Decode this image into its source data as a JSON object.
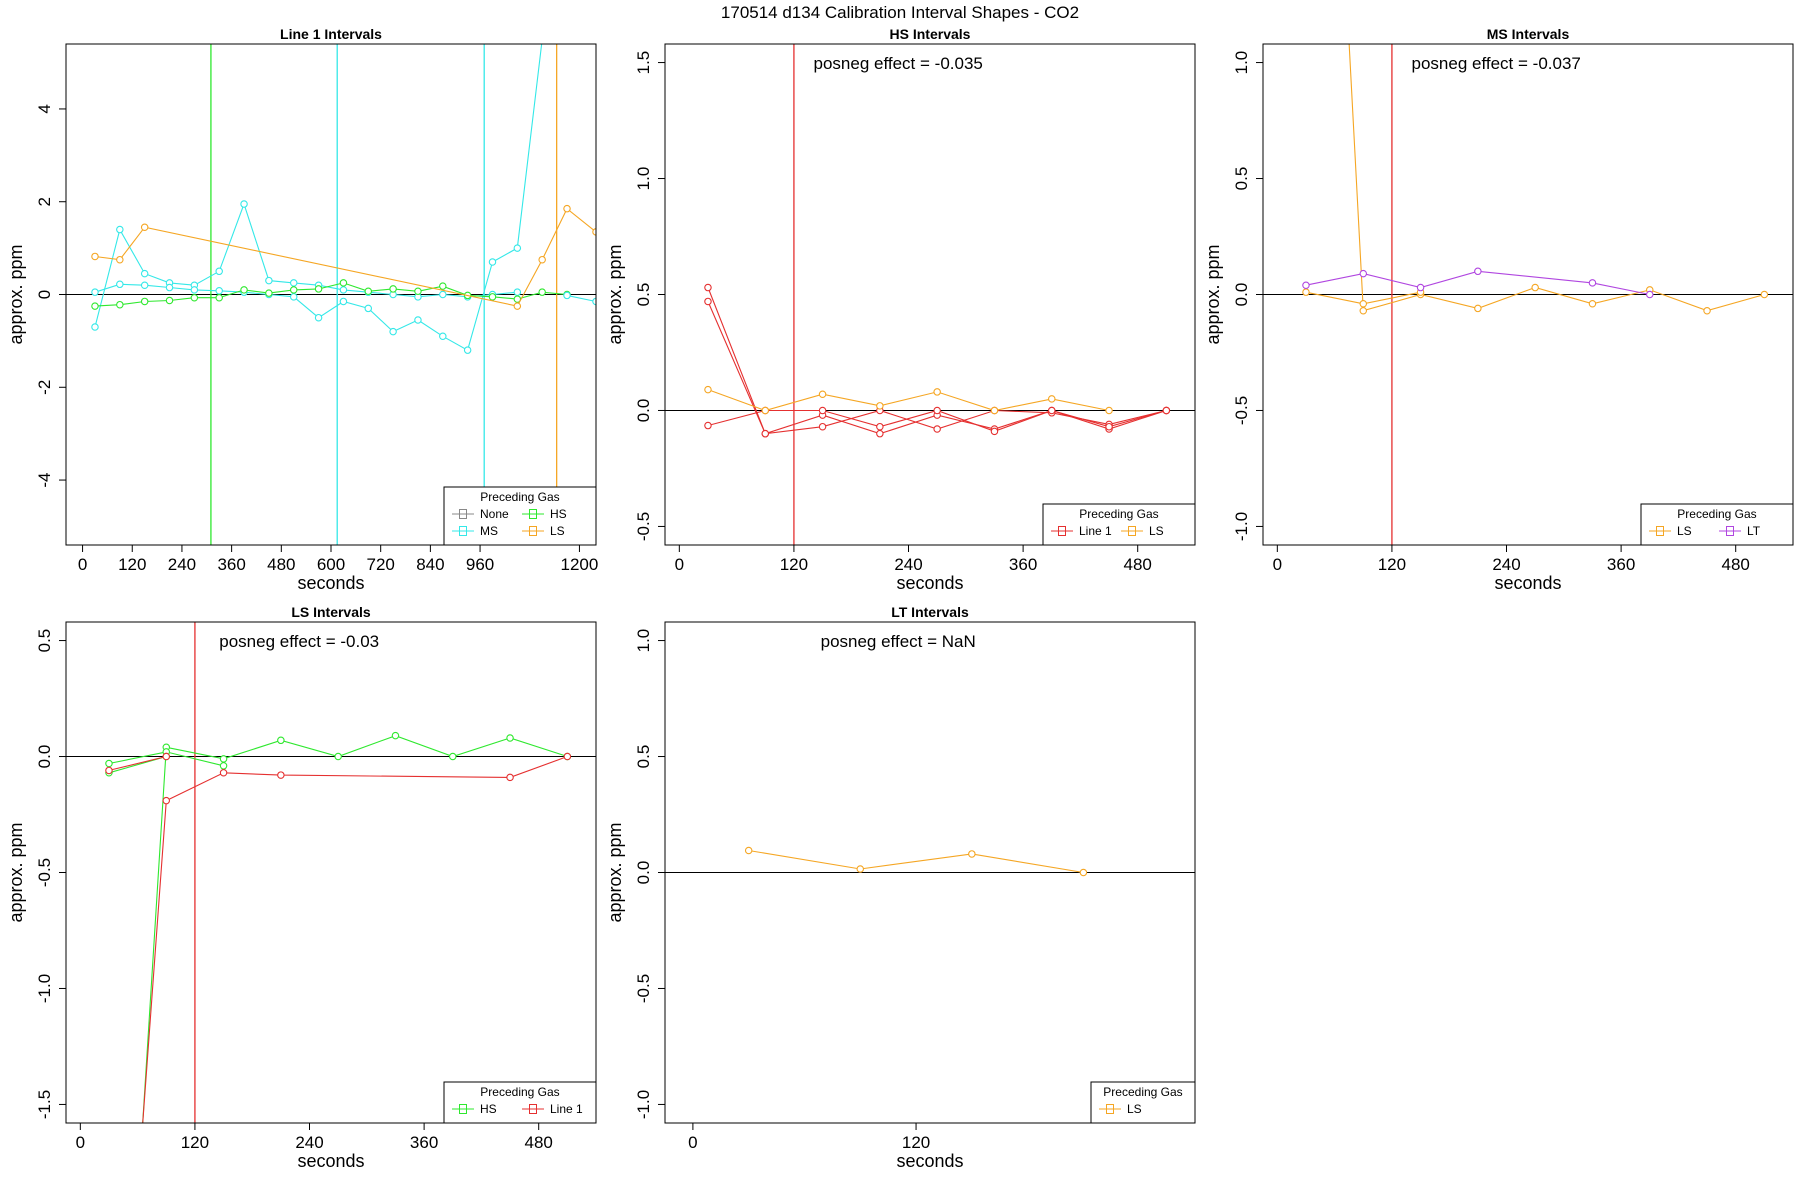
{
  "figure_title": "170514  d134   Calibration Interval Shapes - CO2",
  "colors": {
    "None": "#888888",
    "HS": "#2ee82e",
    "MS": "#34e8e8",
    "LS": "#f5a623",
    "Line 1": "#e53030",
    "LT": "#b046e0",
    "zero_line": "#000000"
  },
  "chart_data": [
    {
      "type": "line",
      "title": "Line 1 Intervals",
      "xlabel": "seconds",
      "ylabel": "approx. ppm",
      "xlim": [
        -40,
        1240
      ],
      "ylim": [
        -5.4,
        5.4
      ],
      "xticks": [
        0,
        120,
        240,
        360,
        480,
        600,
        720,
        840,
        960,
        1200
      ],
      "yticks": [
        -4,
        -2,
        0,
        2,
        4
      ],
      "annotation": "",
      "vlines": [
        {
          "x": 310,
          "color_key": "HS"
        },
        {
          "x": 615,
          "color_key": "MS"
        },
        {
          "x": 970,
          "color_key": "MS"
        },
        {
          "x": 1145,
          "color_key": "LS"
        }
      ],
      "legend": {
        "title": "Preceding Gas",
        "entries": [
          "None",
          "HS",
          "MS",
          "LS"
        ],
        "position": "bottomright",
        "columns": 2
      },
      "series": [
        {
          "name": "MS",
          "color_key": "MS",
          "x": [
            30,
            90,
            150,
            210,
            270,
            330,
            390,
            450,
            510,
            570,
            630,
            690,
            750,
            810,
            870,
            930,
            990,
            1050
          ],
          "y": [
            -0.7,
            1.4,
            0.45,
            0.25,
            0.2,
            0.5,
            1.95,
            0.3,
            0.25,
            0.2,
            0.1,
            0.05,
            0.0,
            -0.05,
            0.0,
            -0.05,
            0.0,
            0.05
          ]
        },
        {
          "name": "MS",
          "color_key": "MS",
          "x": [
            30,
            90,
            150,
            210,
            270,
            330,
            390,
            450,
            510,
            570,
            630,
            690,
            750,
            810,
            870,
            930,
            990,
            1050,
            1110
          ],
          "y": [
            0.05,
            0.22,
            0.2,
            0.15,
            0.1,
            0.08,
            0.05,
            0.0,
            -0.05,
            -0.5,
            -0.15,
            -0.3,
            -0.8,
            -0.55,
            -0.9,
            -1.2,
            0.7,
            1.0,
            5.5
          ]
        },
        {
          "name": "HS",
          "color_key": "HS",
          "x": [
            30,
            90,
            150,
            210,
            270,
            330,
            390,
            450,
            510,
            570,
            630,
            690,
            750,
            810,
            870,
            930,
            990,
            1050,
            1110,
            1170
          ],
          "y": [
            -0.25,
            -0.22,
            -0.15,
            -0.13,
            -0.07,
            -0.07,
            0.1,
            0.03,
            0.1,
            0.12,
            0.25,
            0.07,
            0.12,
            0.07,
            0.18,
            -0.02,
            -0.05,
            -0.1,
            0.05,
            0.0
          ]
        },
        {
          "name": "LS",
          "color_key": "LS",
          "x": [
            30,
            90,
            150,
            1050,
            1110,
            1170,
            1240
          ],
          "y": [
            0.82,
            0.75,
            1.45,
            -0.25,
            0.75,
            1.85,
            1.35
          ]
        },
        {
          "name": "MS",
          "color_key": "MS",
          "x": [
            1170,
            1240
          ],
          "y": [
            -0.02,
            -0.15
          ]
        }
      ]
    },
    {
      "type": "line",
      "title": "HS Intervals",
      "xlabel": "seconds",
      "ylabel": "approx. ppm",
      "xlim": [
        -15,
        540
      ],
      "ylim": [
        -0.58,
        1.58
      ],
      "xticks": [
        0,
        120,
        240,
        360,
        480
      ],
      "yticks": [
        -0.5,
        0.0,
        0.5,
        1.0,
        1.5
      ],
      "annotation": "posneg effect = -0.035",
      "vlines": [
        {
          "x": 120,
          "color_key": "Line 1"
        }
      ],
      "legend": {
        "title": "Preceding Gas",
        "entries": [
          "Line 1",
          "LS"
        ],
        "position": "bottomright",
        "columns": 2
      },
      "series": [
        {
          "name": "Line 1",
          "color_key": "Line 1",
          "x": [
            30,
            90,
            150,
            210,
            270,
            330,
            390,
            450,
            510
          ],
          "y": [
            0.53,
            -0.1,
            -0.02,
            -0.1,
            -0.02,
            -0.08,
            0.0,
            -0.08,
            0.0
          ]
        },
        {
          "name": "Line 1",
          "color_key": "Line 1",
          "x": [
            30,
            90,
            150,
            210,
            270,
            330,
            390,
            450,
            510
          ],
          "y": [
            0.47,
            -0.1,
            -0.07,
            0.0,
            -0.08,
            0.0,
            -0.01,
            -0.06,
            0.0
          ]
        },
        {
          "name": "Line 1",
          "color_key": "Line 1",
          "x": [
            30,
            90,
            150,
            210,
            270,
            330,
            390,
            450,
            510
          ],
          "y": [
            -0.065,
            0.0,
            0.0,
            -0.07,
            0.0,
            -0.09,
            0.0,
            -0.07,
            0.0
          ]
        },
        {
          "name": "LS",
          "color_key": "LS",
          "x": [
            30,
            90,
            150,
            210,
            270,
            330,
            390,
            450
          ],
          "y": [
            0.09,
            0.0,
            0.07,
            0.02,
            0.08,
            0.0,
            0.05,
            0.0
          ]
        }
      ]
    },
    {
      "type": "line",
      "title": "MS Intervals",
      "xlabel": "seconds",
      "ylabel": "approx. ppm",
      "xlim": [
        -15,
        540
      ],
      "ylim": [
        -1.08,
        1.08
      ],
      "xticks": [
        0,
        120,
        240,
        360,
        480
      ],
      "yticks": [
        -1.0,
        -0.5,
        0.0,
        0.5,
        1.0
      ],
      "annotation": "posneg effect = -0.037",
      "vlines": [
        {
          "x": 120,
          "color_key": "Line 1"
        }
      ],
      "legend": {
        "title": "Preceding Gas",
        "entries": [
          "LS",
          "LT"
        ],
        "position": "bottomright",
        "columns": 2
      },
      "series": [
        {
          "name": "LS",
          "color_key": "LS",
          "x": [
            75,
            90,
            150,
            210,
            270,
            330,
            390,
            450,
            510
          ],
          "y": [
            1.1,
            -0.07,
            0.0,
            -0.06,
            0.03,
            -0.04,
            0.02,
            -0.07,
            0.0
          ]
        },
        {
          "name": "LS",
          "color_key": "LS",
          "x": [
            30,
            90,
            150
          ],
          "y": [
            0.01,
            -0.04,
            0.01
          ]
        },
        {
          "name": "LT",
          "color_key": "LT",
          "x": [
            30,
            90,
            150,
            210,
            330,
            390
          ],
          "y": [
            0.04,
            0.09,
            0.03,
            0.1,
            0.05,
            0.0
          ]
        }
      ]
    },
    {
      "type": "line",
      "title": "LS Intervals",
      "xlabel": "seconds",
      "ylabel": "approx. ppm",
      "xlim": [
        -15,
        540
      ],
      "ylim": [
        -1.58,
        0.58
      ],
      "xticks": [
        0,
        120,
        240,
        360,
        480
      ],
      "yticks": [
        -1.5,
        -1.0,
        -0.5,
        0.0,
        0.5
      ],
      "annotation": "posneg effect = -0.03",
      "vlines": [
        {
          "x": 120,
          "color_key": "Line 1"
        }
      ],
      "legend": {
        "title": "Preceding Gas",
        "entries": [
          "HS",
          "Line 1"
        ],
        "position": "bottomright",
        "columns": 2
      },
      "series": [
        {
          "name": "HS",
          "color_key": "HS",
          "x": [
            65,
            90,
            150,
            210,
            270,
            330,
            390,
            450,
            510
          ],
          "y": [
            -1.6,
            0.04,
            -0.01,
            0.07,
            0.0,
            0.09,
            0.0,
            0.08,
            0.0
          ]
        },
        {
          "name": "HS",
          "color_key": "HS",
          "x": [
            30,
            90,
            150
          ],
          "y": [
            -0.03,
            0.02,
            -0.04
          ]
        },
        {
          "name": "HS",
          "color_key": "HS",
          "x": [
            30,
            90
          ],
          "y": [
            -0.07,
            0.0
          ]
        },
        {
          "name": "Line 1",
          "color_key": "Line 1",
          "x": [
            65,
            90,
            150,
            210,
            450,
            510
          ],
          "y": [
            -1.6,
            -0.19,
            -0.07,
            -0.08,
            -0.09,
            0.0
          ]
        },
        {
          "name": "Line 1",
          "color_key": "Line 1",
          "x": [
            30,
            90
          ],
          "y": [
            -0.06,
            0.0
          ]
        }
      ]
    },
    {
      "type": "line",
      "title": "LT Intervals",
      "xlabel": "seconds",
      "ylabel": "approx. ppm",
      "xlim": [
        -15,
        270
      ],
      "ylim": [
        -1.08,
        1.08
      ],
      "xticks": [
        0,
        120
      ],
      "yticks": [
        -1.0,
        -0.5,
        0.0,
        0.5,
        1.0
      ],
      "annotation": "posneg effect = NaN",
      "vlines": [],
      "legend": {
        "title": "Preceding Gas",
        "entries": [
          "LS"
        ],
        "position": "bottomright",
        "columns": 1
      },
      "series": [
        {
          "name": "LS",
          "color_key": "LS",
          "x": [
            30,
            90,
            150,
            210
          ],
          "y": [
            0.095,
            0.015,
            0.08,
            0.0
          ]
        }
      ]
    }
  ]
}
